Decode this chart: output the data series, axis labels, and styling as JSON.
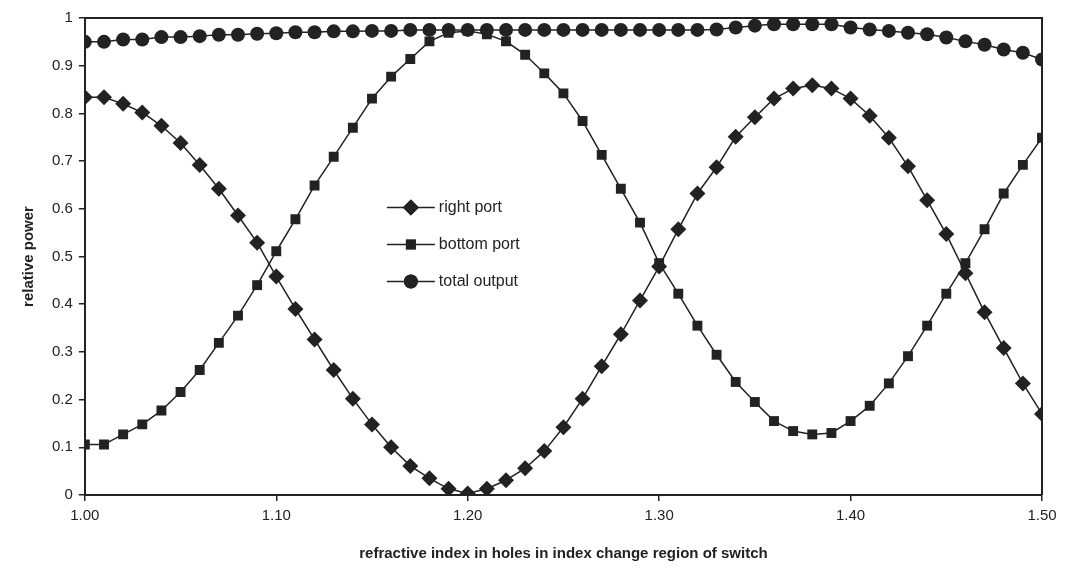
{
  "chart_data": {
    "type": "line",
    "xlabel": "refractive index in holes in index change region of switch",
    "ylabel": "relative power",
    "x": [
      1.0,
      1.01,
      1.02,
      1.03,
      1.04,
      1.05,
      1.06,
      1.07,
      1.08,
      1.09,
      1.1,
      1.11,
      1.12,
      1.13,
      1.14,
      1.15,
      1.16,
      1.17,
      1.18,
      1.19,
      1.2,
      1.21,
      1.22,
      1.23,
      1.24,
      1.25,
      1.26,
      1.27,
      1.28,
      1.29,
      1.3,
      1.31,
      1.32,
      1.33,
      1.34,
      1.35,
      1.36,
      1.37,
      1.38,
      1.39,
      1.4,
      1.41,
      1.42,
      1.43,
      1.44,
      1.45,
      1.46,
      1.47,
      1.48,
      1.49,
      1.5
    ],
    "series": [
      {
        "name": "right port",
        "color": "#222222",
        "marker": "diamond",
        "values": [
          0.834,
          0.834,
          0.82,
          0.802,
          0.774,
          0.738,
          0.692,
          0.642,
          0.586,
          0.529,
          0.458,
          0.39,
          0.326,
          0.262,
          0.202,
          0.148,
          0.1,
          0.061,
          0.035,
          0.013,
          0.003,
          0.013,
          0.031,
          0.056,
          0.092,
          0.142,
          0.202,
          0.27,
          0.337,
          0.408,
          0.479,
          0.557,
          0.632,
          0.687,
          0.751,
          0.792,
          0.831,
          0.852,
          0.859,
          0.852,
          0.831,
          0.795,
          0.749,
          0.689,
          0.618,
          0.547,
          0.465,
          0.383,
          0.308,
          0.234,
          0.17
        ]
      },
      {
        "name": "bottom port",
        "color": "#222222",
        "marker": "square",
        "values": [
          0.106,
          0.106,
          0.127,
          0.148,
          0.177,
          0.216,
          0.262,
          0.319,
          0.376,
          0.44,
          0.511,
          0.578,
          0.649,
          0.709,
          0.77,
          0.831,
          0.877,
          0.914,
          0.951,
          0.969,
          0.973,
          0.966,
          0.951,
          0.923,
          0.884,
          0.842,
          0.784,
          0.713,
          0.642,
          0.571,
          0.486,
          0.422,
          0.355,
          0.294,
          0.237,
          0.195,
          0.155,
          0.134,
          0.127,
          0.13,
          0.155,
          0.187,
          0.234,
          0.291,
          0.355,
          0.422,
          0.486,
          0.557,
          0.632,
          0.692,
          0.749
        ]
      },
      {
        "name": "total output",
        "color": "#222222",
        "marker": "circle",
        "values": [
          0.95,
          0.95,
          0.955,
          0.955,
          0.96,
          0.96,
          0.962,
          0.965,
          0.965,
          0.967,
          0.968,
          0.97,
          0.97,
          0.972,
          0.972,
          0.973,
          0.973,
          0.975,
          0.975,
          0.975,
          0.975,
          0.975,
          0.975,
          0.975,
          0.975,
          0.975,
          0.975,
          0.975,
          0.975,
          0.975,
          0.975,
          0.975,
          0.975,
          0.976,
          0.98,
          0.984,
          0.987,
          0.987,
          0.987,
          0.987,
          0.98,
          0.976,
          0.973,
          0.969,
          0.966,
          0.959,
          0.951,
          0.944,
          0.934,
          0.927,
          0.913
        ]
      }
    ],
    "xlim": [
      1.0,
      1.5
    ],
    "xticks": [
      {
        "value": 1.0,
        "label": "1.00"
      },
      {
        "value": 1.1,
        "label": "1.10"
      },
      {
        "value": 1.2,
        "label": "1.20"
      },
      {
        "value": 1.3,
        "label": "1.30"
      },
      {
        "value": 1.4,
        "label": "1.40"
      },
      {
        "value": 1.5,
        "label": "1.50"
      }
    ],
    "ylim": [
      0,
      1
    ],
    "yticks": [
      0,
      0.1,
      0.2,
      0.3,
      0.4,
      0.5,
      0.6,
      0.7,
      0.8,
      0.9,
      1
    ],
    "grid": false,
    "legend": "center"
  }
}
